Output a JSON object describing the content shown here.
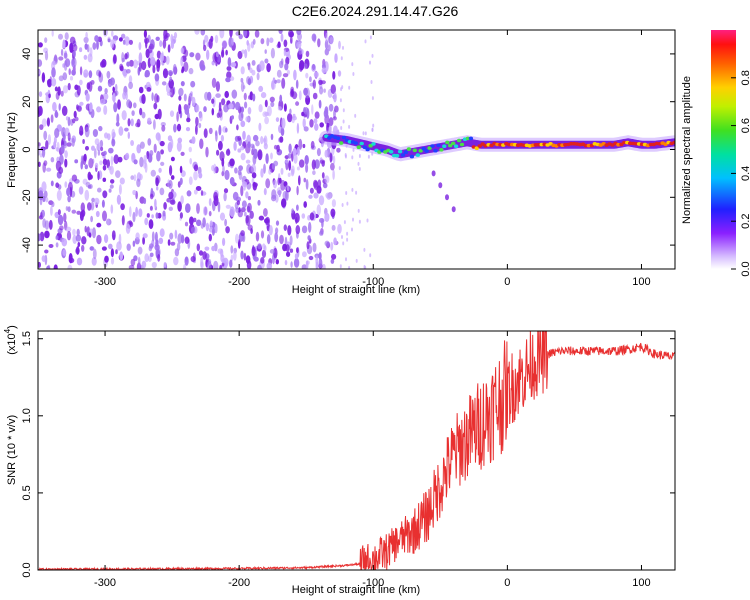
{
  "title": "C2E6.2024.291.14.47.G26",
  "chart_data": [
    {
      "type": "heatmap",
      "name": "spectrogram",
      "xlabel": "Height of straight line (km)",
      "ylabel": "Frequency (Hz)",
      "xlim": [
        -350,
        125
      ],
      "ylim": [
        -50,
        50
      ],
      "xticks": [
        -300,
        -200,
        -100,
        0,
        100
      ],
      "yticks": [
        -40,
        -20,
        0,
        20,
        40
      ],
      "noise_region_x": [
        -350,
        -125
      ],
      "signal_track": {
        "x": [
          -135,
          -120,
          -105,
          -90,
          -80,
          -70,
          -60,
          -50,
          -40,
          -30,
          -20,
          -10,
          0,
          20,
          40,
          60,
          80,
          90,
          100,
          110,
          125
        ],
        "y": [
          5,
          4,
          2,
          0,
          -2,
          -1,
          0,
          1,
          2,
          3,
          2,
          2,
          2,
          2,
          2,
          2,
          2,
          3,
          2,
          2,
          3
        ]
      },
      "descending_branch": {
        "x": [
          -55,
          -50,
          -45,
          -40
        ],
        "y": [
          -10,
          -15,
          -20,
          -25
        ]
      },
      "colorbar": {
        "label": "Normalized spectral amplitude",
        "range": [
          0,
          1
        ],
        "ticks": [
          "0.0",
          "0.2",
          "0.4",
          "0.6",
          "0.8"
        ],
        "tick_values": [
          0.0,
          0.2,
          0.4,
          0.6,
          0.8
        ]
      },
      "colors": {
        "low": "#c8a8ff",
        "mid": "#7a20e0",
        "cyan": "#18d8d8",
        "green": "#48e048",
        "high": "#e02020"
      }
    },
    {
      "type": "line",
      "name": "snr",
      "xlabel": "Height of straight line (km)",
      "ylabel": "SNR (10 * v/v)",
      "multiplier_label": "(x10",
      "multiplier_exp": "4",
      "xlim": [
        -350,
        125
      ],
      "ylim": [
        0,
        1.55
      ],
      "xticks": [
        -300,
        -200,
        -100,
        0,
        100
      ],
      "yticks": [
        "0.0",
        "0.5",
        "1.0",
        "1.5"
      ],
      "ytick_values": [
        0.0,
        0.5,
        1.0,
        1.5
      ],
      "line_color": "#e83030",
      "series": [
        {
          "name": "SNR",
          "x": [
            -350,
            -300,
            -250,
            -200,
            -150,
            -120,
            -110,
            -100,
            -90,
            -80,
            -70,
            -60,
            -50,
            -40,
            -30,
            -20,
            -10,
            0,
            10,
            20,
            30,
            40,
            60,
            80,
            90,
            100,
            110,
            125
          ],
          "y": [
            0.005,
            0.006,
            0.008,
            0.01,
            0.015,
            0.03,
            0.04,
            0.07,
            0.12,
            0.2,
            0.25,
            0.35,
            0.55,
            0.75,
            0.85,
            0.95,
            1.05,
            1.15,
            1.25,
            1.35,
            1.4,
            1.42,
            1.42,
            1.42,
            1.43,
            1.45,
            1.4,
            1.38
          ]
        }
      ]
    }
  ]
}
